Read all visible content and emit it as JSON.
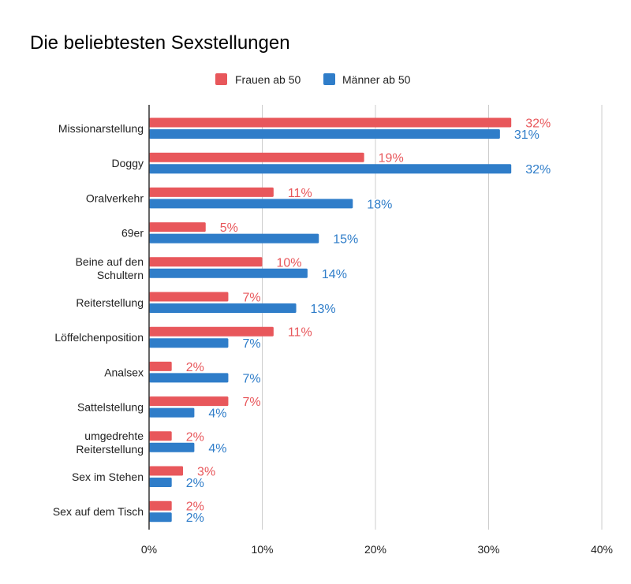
{
  "chart_data": {
    "type": "bar",
    "orientation": "horizontal",
    "title": "Die beliebtesten Sexstellungen",
    "xlabel": "",
    "ylabel": "",
    "xlim": [
      0,
      40
    ],
    "ticks": [
      "0%",
      "10%",
      "20%",
      "30%",
      "40%"
    ],
    "tick_values": [
      0,
      10,
      20,
      30,
      40
    ],
    "grid": true,
    "legend_position": "top-center",
    "categories": [
      [
        "Missionarstellung"
      ],
      [
        "Doggy"
      ],
      [
        "Oralverkehr"
      ],
      [
        "69er"
      ],
      [
        "Beine auf den",
        "Schultern"
      ],
      [
        "Reiterstellung"
      ],
      [
        "Löffelchenposition"
      ],
      [
        "Analsex"
      ],
      [
        "Sattelstellung"
      ],
      [
        "umgedrehte",
        "Reiterstellung"
      ],
      [
        "Sex im Stehen"
      ],
      [
        "Sex auf dem Tisch"
      ]
    ],
    "series": [
      {
        "name": "Frauen ab 50",
        "color": "#e8575b",
        "values": [
          32,
          19,
          11,
          5,
          10,
          7,
          11,
          2,
          7,
          2,
          3,
          2
        ],
        "labels": [
          "32%",
          "19%",
          "11%",
          "5%",
          "10%",
          "7%",
          "11%",
          "2%",
          "7%",
          "2%",
          "3%",
          "2%"
        ]
      },
      {
        "name": "Männer ab 50",
        "color": "#2f7dc9",
        "values": [
          31,
          32,
          18,
          15,
          14,
          13,
          7,
          7,
          4,
          4,
          2,
          2
        ],
        "labels": [
          "31%",
          "32%",
          "18%",
          "15%",
          "14%",
          "13%",
          "7%",
          "7%",
          "4%",
          "4%",
          "2%",
          "2%"
        ]
      }
    ]
  }
}
